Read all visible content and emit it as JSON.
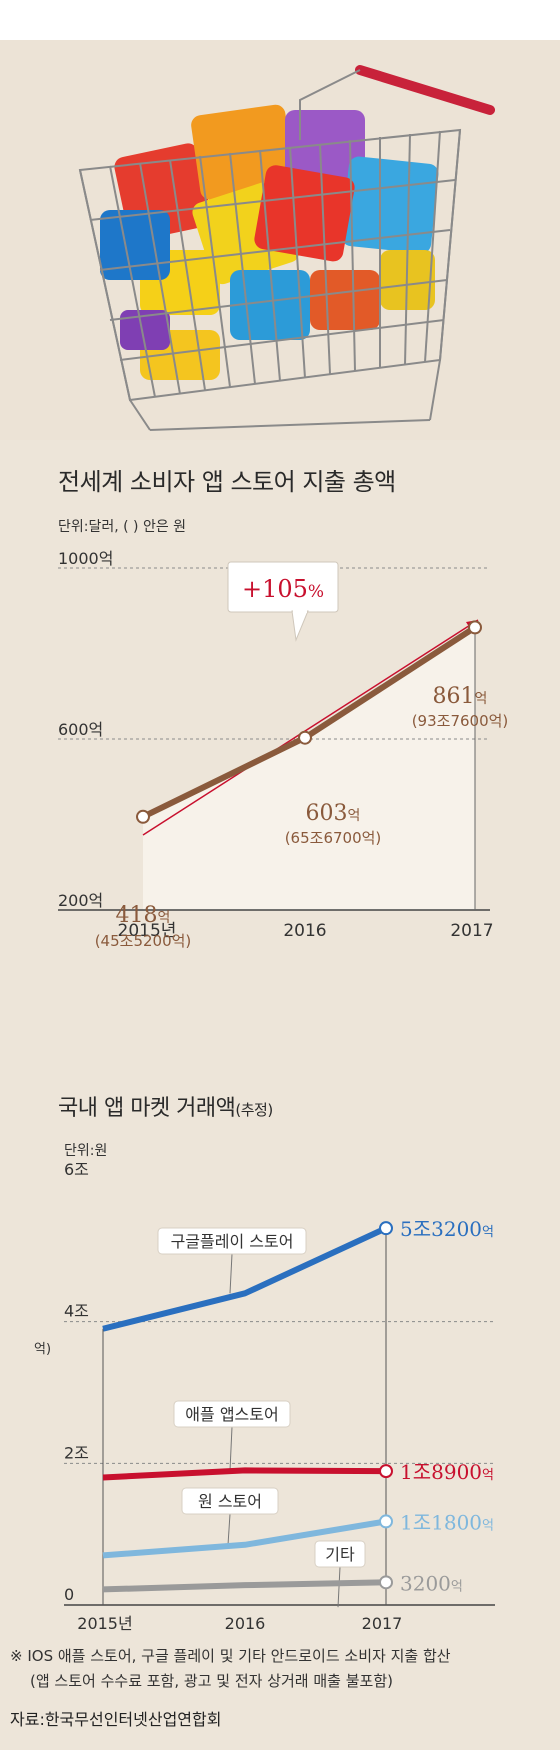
{
  "chart_data": [
    {
      "type": "line",
      "title": "전세계 소비자 앱 스토어 지출 총액",
      "unit_note": "단위:달러, ( ) 안은 원",
      "categories": [
        "2015년",
        "2016",
        "2017"
      ],
      "values": [
        418,
        603,
        861
      ],
      "value_labels": [
        {
          "main": "418",
          "unit": "억",
          "sub": "(45조5200억)"
        },
        {
          "main": "603",
          "unit": "억",
          "sub": "(65조6700억)"
        },
        {
          "main": "861",
          "unit": "억",
          "sub": "(93조7600억)"
        }
      ],
      "y_ticks": [
        {
          "value": 1000,
          "label": "1000억"
        },
        {
          "value": 600,
          "label": "600억"
        },
        {
          "value": 200,
          "label": "200억"
        }
      ],
      "ylim": [
        200,
        1000
      ],
      "growth_callout": "+105",
      "growth_unit": "%",
      "line_color": "#8a5a3c",
      "accent_color": "#c8102e",
      "grid": true
    },
    {
      "type": "line",
      "title": "국내 앱 마켓 거래액",
      "title_suffix": "(추정)",
      "unit_note": "단위:원",
      "categories": [
        "2015년",
        "2016",
        "2017"
      ],
      "y_ticks": [
        {
          "value": 6,
          "label": "6조"
        },
        {
          "value": 4,
          "label": "4조"
        },
        {
          "value": 2,
          "label": "2조"
        },
        {
          "value": 0,
          "label": "0"
        }
      ],
      "ylim": [
        0,
        6
      ],
      "side_label": "억)",
      "series": [
        {
          "name": "구글플레이 스토어",
          "values": [
            3.9,
            4.4,
            5.32
          ],
          "end_main": "5조3200",
          "end_unit": "억",
          "color": "#2a6fbf"
        },
        {
          "name": "애플 앱스토어",
          "values": [
            1.8,
            1.9,
            1.89
          ],
          "end_main": "1조8900",
          "end_unit": "억",
          "color": "#c8102e"
        },
        {
          "name": "원 스토어",
          "values": [
            0.7,
            0.85,
            1.18
          ],
          "end_main": "1조1800",
          "end_unit": "억",
          "color": "#7fb7dd"
        },
        {
          "name": "기타",
          "values": [
            0.22,
            0.28,
            0.32
          ],
          "end_main": "3200",
          "end_unit": "억",
          "color": "#9a9a9a"
        }
      ],
      "grid": true
    }
  ],
  "footnote_line1": "※ IOS 애플 스토어, 구글 플레이 및 기타 안드로이드 소비자 지출 합산",
  "footnote_line2": "(앱 스토어 수수료 포함, 광고 및 전자 상거래 매출 불포함)",
  "source": "자료:한국무선인터넷산업연합회"
}
